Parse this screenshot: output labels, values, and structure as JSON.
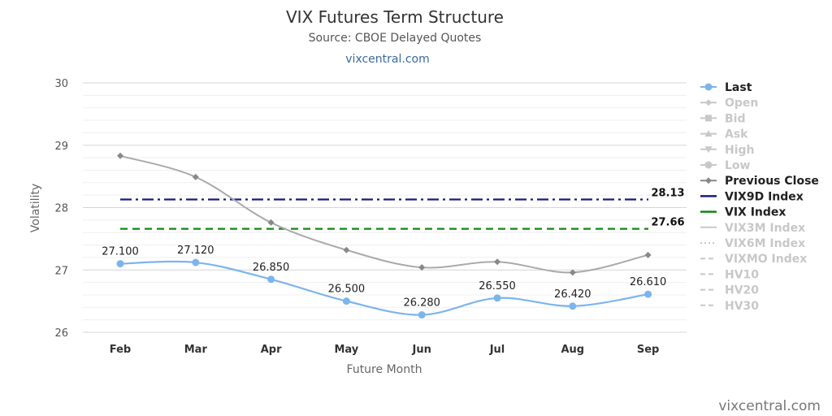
{
  "chart_data": {
    "type": "line",
    "title": "VIX Futures Term Structure",
    "subtitle": "Source: CBOE Delayed Quotes",
    "link_text": "vixcentral.com",
    "credit": "vixcentral.com",
    "xlabel": "Future Month",
    "ylabel": "Volatility",
    "ylim": [
      26,
      30
    ],
    "yticks": [
      26,
      27,
      28,
      29,
      30
    ],
    "grid": true,
    "legend_position": "right",
    "categories": [
      "Feb",
      "Mar",
      "Apr",
      "May",
      "Jun",
      "Jul",
      "Aug",
      "Sep"
    ],
    "series": [
      {
        "name": "Last",
        "values": [
          27.1,
          27.12,
          26.85,
          26.5,
          26.28,
          26.55,
          26.42,
          26.61
        ],
        "labels": [
          "27.100",
          "27.120",
          "26.850",
          "26.500",
          "26.280",
          "26.550",
          "26.420",
          "26.610"
        ],
        "color": "#7cb5ec"
      },
      {
        "name": "Previous Close",
        "values": [
          28.83,
          28.49,
          27.76,
          27.32,
          27.04,
          27.13,
          26.96,
          27.24
        ],
        "color": "#aaaaaa"
      }
    ],
    "reference_lines": [
      {
        "name": "VIX9D Index",
        "value": 28.13,
        "label": "28.13",
        "color": "#1a1a80"
      },
      {
        "name": "VIX Index",
        "value": 27.66,
        "label": "27.66",
        "color": "#118811"
      }
    ],
    "legend": [
      {
        "name": "Last",
        "active": true,
        "symbol": "circle-line",
        "color": "#7cb5ec"
      },
      {
        "name": "Open",
        "active": false,
        "symbol": "diamond-line"
      },
      {
        "name": "Bid",
        "active": false,
        "symbol": "square-line"
      },
      {
        "name": "Ask",
        "active": false,
        "symbol": "triangle-line"
      },
      {
        "name": "High",
        "active": false,
        "symbol": "triangle-down-line"
      },
      {
        "name": "Low",
        "active": false,
        "symbol": "circle-line"
      },
      {
        "name": "Previous Close",
        "active": true,
        "symbol": "diamond-line",
        "color": "#888888"
      },
      {
        "name": "VIX9D Index",
        "active": true,
        "symbol": "solid-line",
        "color": "#1a1a80"
      },
      {
        "name": "VIX Index",
        "active": true,
        "symbol": "solid-line",
        "color": "#118811"
      },
      {
        "name": "VIX3M Index",
        "active": false,
        "symbol": "solid-line"
      },
      {
        "name": "VIX6M Index",
        "active": false,
        "symbol": "dotted-line"
      },
      {
        "name": "VIXMO Index",
        "active": false,
        "symbol": "dashed-line"
      },
      {
        "name": "HV10",
        "active": false,
        "symbol": "dashed-line"
      },
      {
        "name": "HV20",
        "active": false,
        "symbol": "dashed-line"
      },
      {
        "name": "HV30",
        "active": false,
        "symbol": "dashed-line"
      }
    ]
  }
}
